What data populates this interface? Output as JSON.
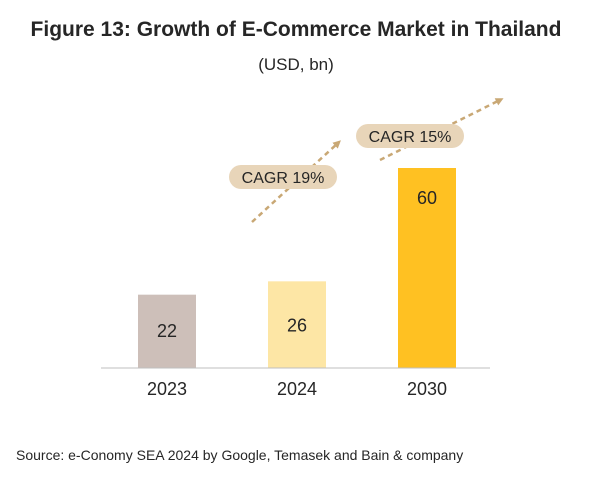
{
  "title": "Figure 13: Growth of E-Commerce Market in Thailand",
  "subtitle": "(USD, bn)",
  "source": "Source: e-Conomy SEA 2024 by Google, Temasek and Bain & company",
  "chart_data": {
    "type": "bar",
    "title": "Figure 13: Growth of E-Commerce Market in Thailand",
    "subtitle": "(USD, bn)",
    "categories": [
      "2023",
      "2024",
      "2030"
    ],
    "values": [
      22,
      26,
      60
    ],
    "data_labels": [
      "22",
      "26",
      "60"
    ],
    "bar_colors": [
      "#cdbfb9",
      "#fde6a5",
      "#ffc122"
    ],
    "xlabel": "",
    "ylabel": "",
    "ylim": [
      0,
      72
    ],
    "grid": false,
    "legend": "none",
    "annotations": [
      {
        "text": "CAGR 19%",
        "from": "2023",
        "to": "2024"
      },
      {
        "text": "CAGR 15%",
        "from": "2024",
        "to": "2030"
      }
    ],
    "annotation_style": {
      "arrow_color": "#c9a875",
      "label_bg": "#e8d5b9"
    }
  }
}
